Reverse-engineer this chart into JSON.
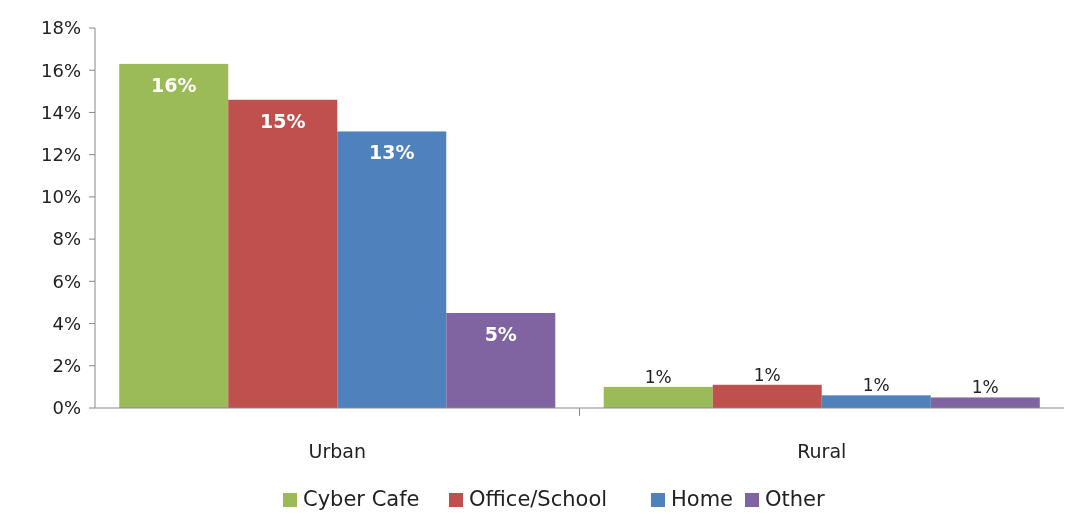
{
  "chart_data": {
    "type": "bar",
    "categories": [
      "Urban",
      "Rural"
    ],
    "series": [
      {
        "name": "Cyber Cafe",
        "color": "#9bbb59",
        "values": [
          16.3,
          1.0
        ],
        "value_labels": [
          "16%",
          "1%"
        ]
      },
      {
        "name": "Office/School",
        "color": "#c0504d",
        "values": [
          14.6,
          1.1
        ],
        "value_labels": [
          "15%",
          "1%"
        ]
      },
      {
        "name": "Home",
        "color": "#4f81bd",
        "values": [
          13.1,
          0.6
        ],
        "value_labels": [
          "13%",
          "1%"
        ]
      },
      {
        "name": "Other",
        "color": "#8064a2",
        "values": [
          4.5,
          0.5
        ],
        "value_labels": [
          "5%",
          "1%"
        ]
      }
    ],
    "ylim": [
      0,
      18
    ],
    "yticks": [
      {
        "value": 0,
        "label": "0%"
      },
      {
        "value": 2,
        "label": "2%"
      },
      {
        "value": 4,
        "label": "4%"
      },
      {
        "value": 6,
        "label": "6%"
      },
      {
        "value": 8,
        "label": "8%"
      },
      {
        "value": 10,
        "label": "10%"
      },
      {
        "value": 12,
        "label": "12%"
      },
      {
        "value": 14,
        "label": "14%"
      },
      {
        "value": 16,
        "label": "16%"
      },
      {
        "value": 18,
        "label": "18%"
      }
    ],
    "grid": false,
    "legend": "bottom"
  }
}
